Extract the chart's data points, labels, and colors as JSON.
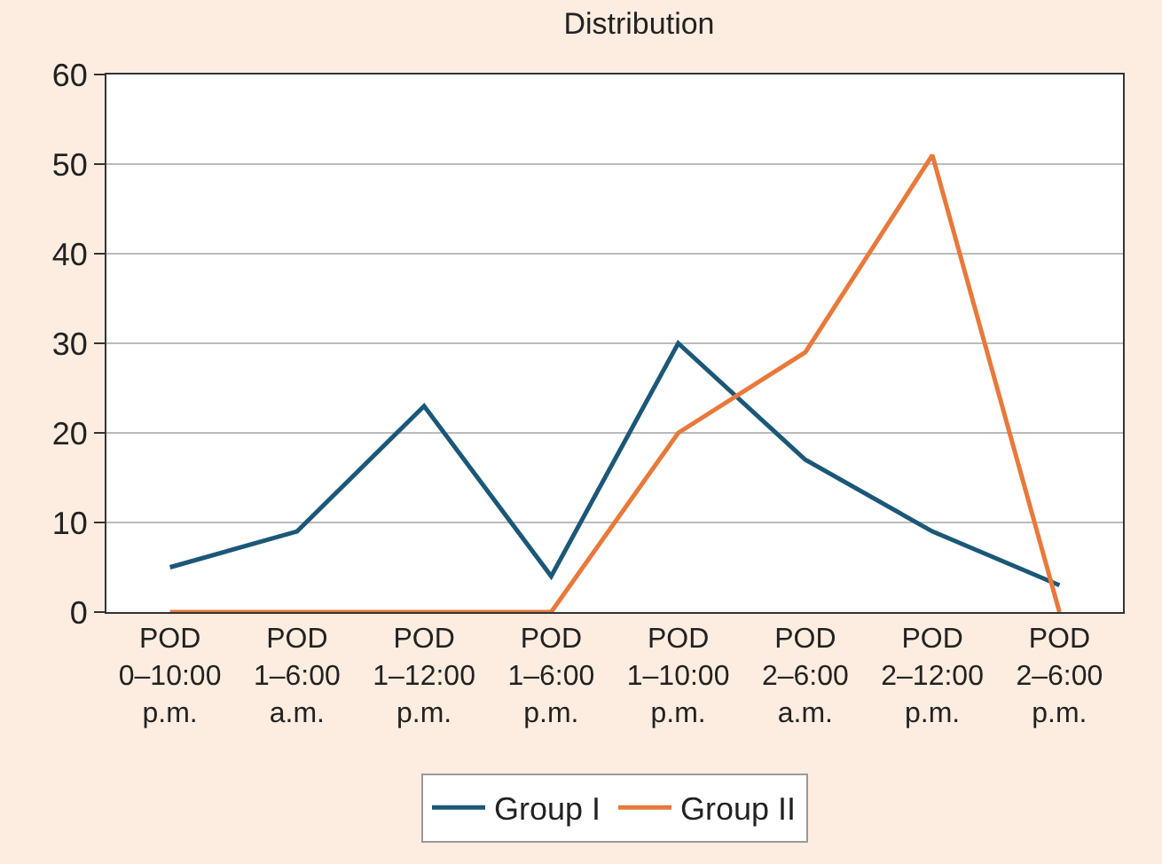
{
  "chart_data": {
    "type": "line",
    "title": "Distribution",
    "categories": [
      "POD 0–10:00 p.m.",
      "POD 1–6:00 a.m.",
      "POD 1–12:00 p.m.",
      "POD 1–6:00 p.m.",
      "POD 1–10:00 p.m.",
      "POD 2–6:00 a.m.",
      "POD 2–12:00 p.m.",
      "POD 2–6:00 p.m."
    ],
    "series": [
      {
        "name": "Group I",
        "color": "#1b5878",
        "values": [
          5,
          9,
          23,
          4,
          30,
          17,
          9,
          3
        ]
      },
      {
        "name": "Group II",
        "color": "#e8793a",
        "values": [
          0,
          0,
          0,
          0,
          20,
          29,
          51,
          0
        ]
      }
    ],
    "ylim": [
      0,
      60
    ],
    "yticks": [
      0,
      10,
      20,
      30,
      40,
      50,
      60
    ],
    "grid": "y",
    "legend": "bottom",
    "marker": "none",
    "line_style": "solid"
  }
}
